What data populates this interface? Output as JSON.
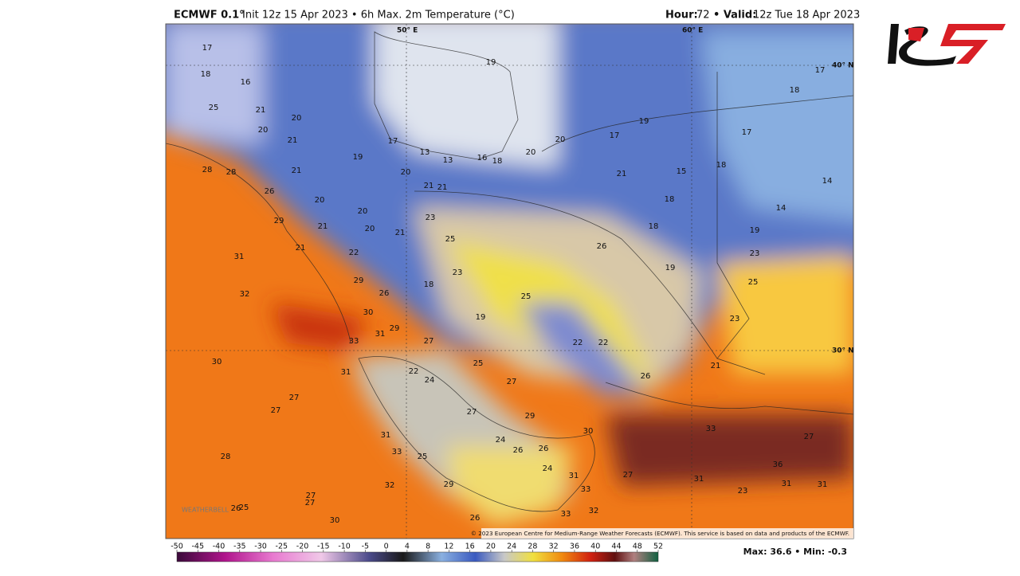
{
  "header": {
    "model": "ECMWF 0.1°",
    "run": "Init 12z 15 Apr 2023 • 6h Max. 2m Temperature (°C)",
    "hour_label": "Hour:",
    "hour": "72",
    "valid_label": "• Valid:",
    "valid": "12z Tue 18 Apr 2023"
  },
  "map": {
    "graticule": [
      "50° E",
      "60° E",
      "40° N",
      "30° N"
    ],
    "labels": [
      "17",
      "18",
      "16",
      "21",
      "20",
      "21",
      "20",
      "25",
      "17",
      "13",
      "13",
      "16",
      "18",
      "20",
      "20",
      "19",
      "17",
      "19",
      "15",
      "18",
      "17",
      "18",
      "17",
      "14",
      "14",
      "19",
      "23",
      "25",
      "23",
      "21",
      "18",
      "21",
      "18",
      "19",
      "26",
      "25",
      "23",
      "23",
      "25",
      "19",
      "22",
      "22",
      "26",
      "25",
      "27",
      "29",
      "27",
      "24",
      "22",
      "31",
      "33",
      "31",
      "29",
      "27",
      "30",
      "26",
      "29",
      "22",
      "18",
      "21",
      "21",
      "20",
      "21",
      "20",
      "20",
      "21",
      "21",
      "21",
      "20",
      "19",
      "26",
      "29",
      "28",
      "28",
      "31",
      "32",
      "30",
      "27",
      "27",
      "28",
      "27",
      "27",
      "26",
      "25",
      "30",
      "32",
      "33",
      "31",
      "25",
      "29",
      "26",
      "24",
      "26",
      "26",
      "24",
      "30",
      "33",
      "31",
      "33",
      "32",
      "33",
      "36",
      "27",
      "27",
      "31",
      "31",
      "31",
      "23"
    ],
    "copyright": "© 2023 European Centre for Medium-Range Weather Forecasts (ECMWF). This service is based on data and products of the ECMWF.",
    "watermark": "WEATHERBELL"
  },
  "colorbar": {
    "ticks": [
      -50,
      -45,
      -40,
      -35,
      -30,
      -25,
      -20,
      -15,
      -10,
      -5,
      0,
      4,
      8,
      12,
      16,
      20,
      24,
      28,
      32,
      36,
      40,
      44,
      48,
      52
    ]
  },
  "footer": {
    "stats": "Max: 36.6 • Min: -0.3"
  }
}
